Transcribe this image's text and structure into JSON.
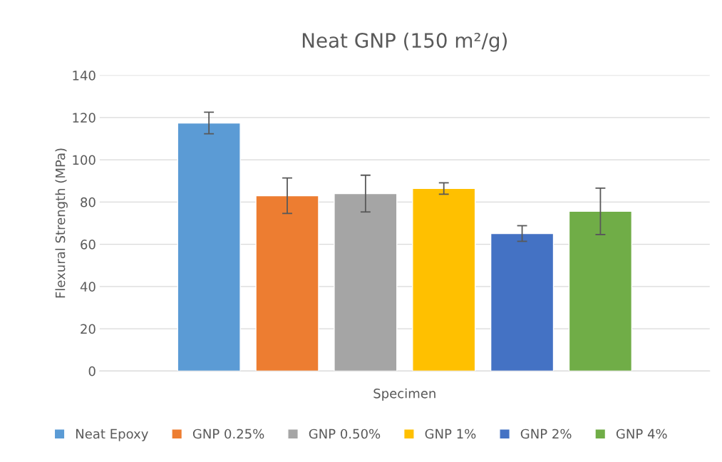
{
  "chart_data": {
    "type": "bar",
    "title": "Neat GNP (150 m²/g)",
    "xlabel": "Specimen",
    "ylabel": "Flexural Strength (MPa)",
    "categories": [
      null
    ],
    "series": [
      {
        "name": "Neat Epoxy",
        "color": "#5b9bd5",
        "values": [
          117.4
        ],
        "errors": [
          5.1
        ]
      },
      {
        "name": "GNP 0.25%",
        "color": "#ed7d31",
        "values": [
          83.0
        ],
        "errors": [
          8.4
        ]
      },
      {
        "name": "GNP 0.50%",
        "color": "#a5a5a5",
        "values": [
          84.0
        ],
        "errors": [
          8.7
        ]
      },
      {
        "name": "GNP 1%",
        "color": "#ffc000",
        "values": [
          86.4
        ],
        "errors": [
          2.7
        ]
      },
      {
        "name": "GNP 2%",
        "color": "#4472c4",
        "values": [
          65.1
        ],
        "errors": [
          3.7
        ]
      },
      {
        "name": "GNP 4%",
        "color": "#70ad47",
        "values": [
          75.6
        ],
        "errors": [
          11.0
        ]
      }
    ],
    "ylim": [
      0,
      140
    ],
    "yticks": [
      0,
      20,
      40,
      60,
      80,
      100,
      120,
      140
    ],
    "grid": "y",
    "legend": "bottom"
  }
}
